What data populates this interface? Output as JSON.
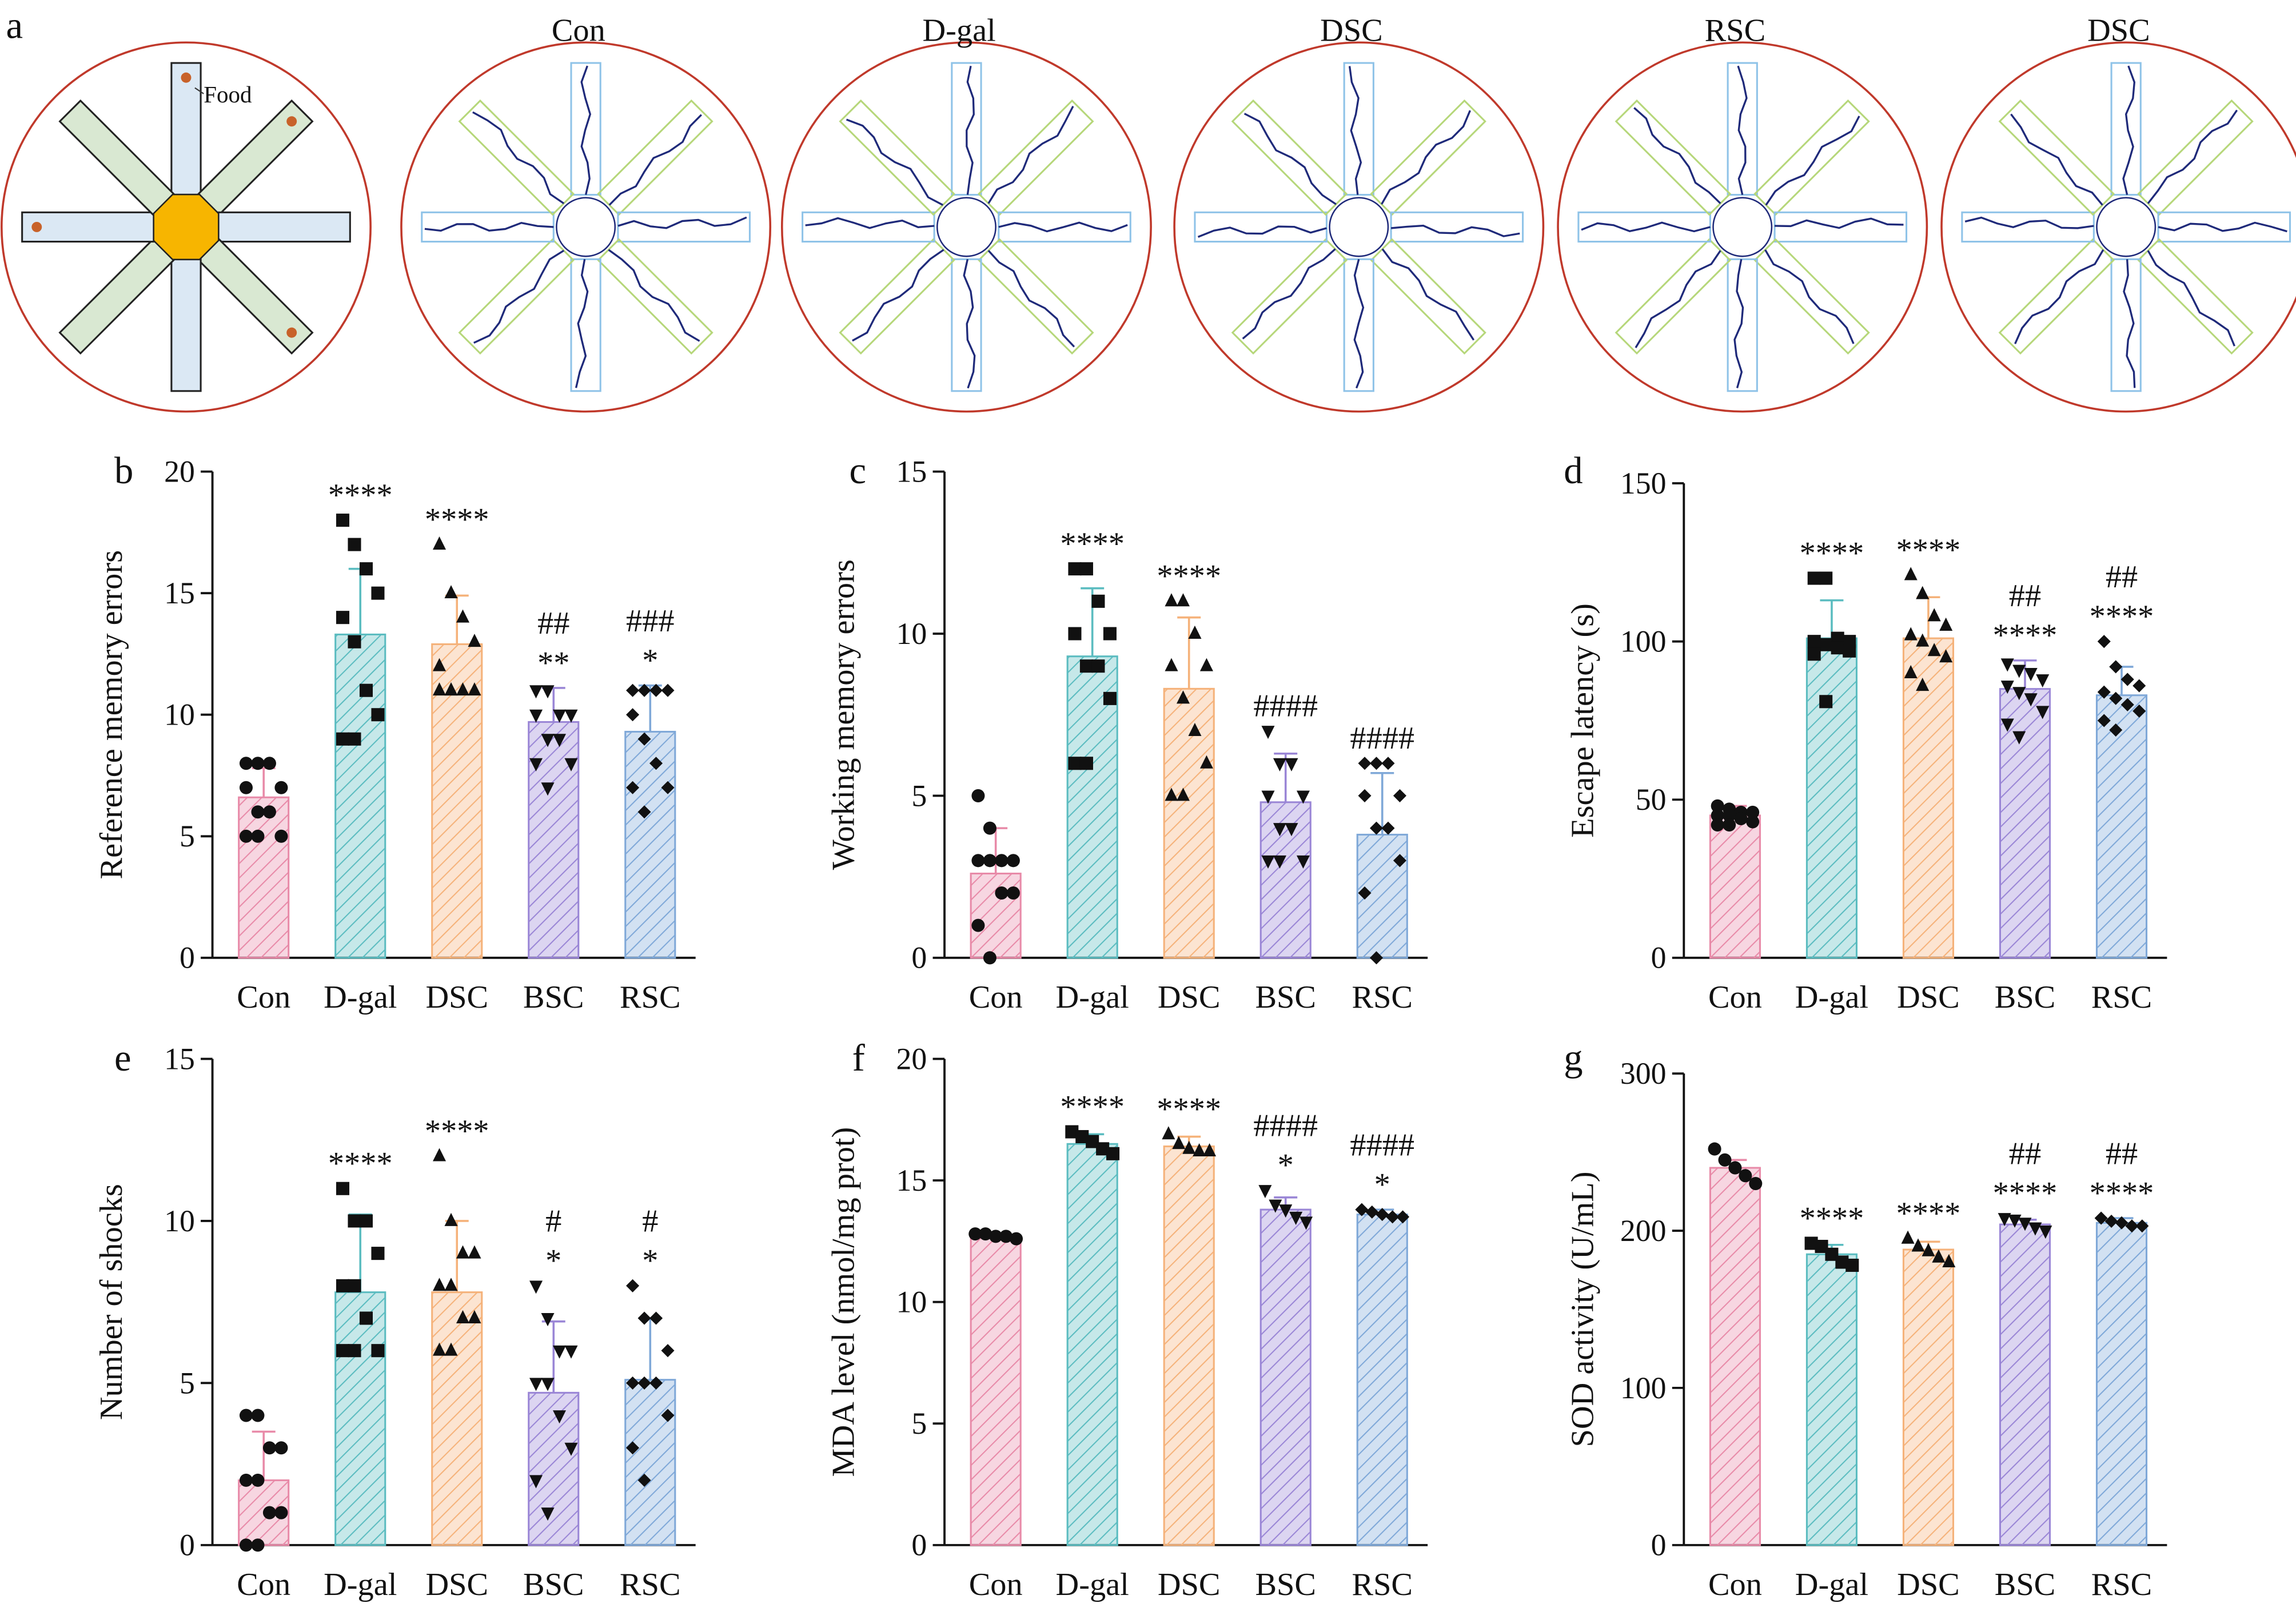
{
  "panel_a": {
    "label": "a",
    "titles": [
      "Con",
      "D-gal",
      "DSC",
      "RSC",
      "DSC"
    ],
    "food": "Food"
  },
  "chart_data": [
    {
      "type": "bar",
      "panel": "b",
      "ylabel": "Reference memory errors",
      "categories": [
        "Con",
        "D-gal",
        "DSC",
        "BSC",
        "RSC"
      ],
      "colors": [
        "#e88aa8",
        "#5bbcc0",
        "#f5b27a",
        "#9a86d6",
        "#7fa8d8"
      ],
      "markers": [
        "circle",
        "square",
        "triangle",
        "triangle-down",
        "diamond"
      ],
      "values": [
        6.6,
        13.3,
        12.9,
        9.7,
        9.3
      ],
      "errors": [
        1.2,
        2.7,
        2.0,
        1.4,
        1.9
      ],
      "points": [
        [
          8,
          8,
          8,
          7,
          7,
          6,
          6,
          5,
          5,
          5
        ],
        [
          18,
          17,
          16,
          15,
          14,
          13,
          11,
          10,
          9,
          9
        ],
        [
          17,
          15,
          14,
          13,
          12,
          11,
          11,
          11,
          11,
          11
        ],
        [
          11,
          11,
          10,
          10,
          10,
          9,
          9,
          8,
          8,
          7
        ],
        [
          11,
          11,
          11,
          11,
          10,
          9,
          8,
          7,
          7,
          6
        ]
      ],
      "annotations": [
        [],
        [
          "****"
        ],
        [
          "****"
        ],
        [
          "##",
          "**"
        ],
        [
          "###",
          "*"
        ]
      ],
      "ylim": [
        0,
        20
      ],
      "yticks": [
        0,
        5,
        10,
        15,
        20
      ]
    },
    {
      "type": "bar",
      "panel": "c",
      "ylabel": "Working memory errors",
      "categories": [
        "Con",
        "D-gal",
        "DSC",
        "BSC",
        "RSC"
      ],
      "colors": [
        "#e88aa8",
        "#5bbcc0",
        "#f5b27a",
        "#9a86d6",
        "#7fa8d8"
      ],
      "markers": [
        "circle",
        "square",
        "triangle",
        "triangle-down",
        "diamond"
      ],
      "values": [
        2.6,
        9.3,
        8.3,
        4.8,
        3.8
      ],
      "errors": [
        1.4,
        2.1,
        2.2,
        1.5,
        1.9
      ],
      "points": [
        [
          5,
          4,
          3,
          3,
          3,
          3,
          2,
          2,
          1,
          0
        ],
        [
          12,
          12,
          11,
          10,
          10,
          9,
          9,
          8,
          6,
          6
        ],
        [
          11,
          11,
          10,
          9,
          9,
          8,
          7,
          6,
          5,
          5
        ],
        [
          7,
          6,
          6,
          5,
          5,
          4,
          4,
          3,
          3,
          3
        ],
        [
          6,
          6,
          6,
          5,
          5,
          4,
          4,
          3,
          2,
          0
        ]
      ],
      "annotations": [
        [],
        [
          "****"
        ],
        [
          "****"
        ],
        [
          "####"
        ],
        [
          "####"
        ]
      ],
      "ylim": [
        0,
        15
      ],
      "yticks": [
        0,
        5,
        10,
        15
      ]
    },
    {
      "type": "bar",
      "panel": "d",
      "ylabel": "Escape latency (s)",
      "categories": [
        "Con",
        "D-gal",
        "DSC",
        "BSC",
        "RSC"
      ],
      "colors": [
        "#e88aa8",
        "#5bbcc0",
        "#f5b27a",
        "#9a86d6",
        "#7fa8d8"
      ],
      "markers": [
        "circle",
        "square",
        "triangle",
        "triangle-down",
        "diamond"
      ],
      "values": [
        45,
        101,
        101,
        85,
        83
      ],
      "errors": [
        3,
        12,
        13,
        9,
        9
      ],
      "points": [
        [
          48,
          47,
          46,
          46,
          45,
          45,
          44,
          43,
          42,
          42
        ],
        [
          120,
          120,
          101,
          100,
          100,
          99,
          98,
          97,
          96,
          81
        ],
        [
          121,
          115,
          108,
          105,
          102,
          100,
          97,
          95,
          90,
          86
        ],
        [
          93,
          91,
          90,
          88,
          86,
          84,
          82,
          78,
          74,
          70
        ],
        [
          100,
          92,
          88,
          86,
          84,
          82,
          80,
          78,
          75,
          72
        ]
      ],
      "annotations": [
        [],
        [
          "****"
        ],
        [
          "****"
        ],
        [
          "##",
          "****"
        ],
        [
          "##",
          "****"
        ]
      ],
      "ylim": [
        0,
        150
      ],
      "yticks": [
        0,
        50,
        100,
        150
      ]
    },
    {
      "type": "bar",
      "panel": "e",
      "ylabel": "Number of shocks",
      "categories": [
        "Con",
        "D-gal",
        "DSC",
        "BSC",
        "RSC"
      ],
      "colors": [
        "#e88aa8",
        "#5bbcc0",
        "#f5b27a",
        "#9a86d6",
        "#7fa8d8"
      ],
      "markers": [
        "circle",
        "square",
        "triangle",
        "triangle-down",
        "diamond"
      ],
      "values": [
        2.0,
        7.8,
        7.8,
        4.7,
        5.1
      ],
      "errors": [
        1.5,
        2.4,
        2.2,
        2.2,
        1.9
      ],
      "points": [
        [
          4,
          4,
          3,
          3,
          2,
          2,
          1,
          1,
          0,
          0
        ],
        [
          11,
          10,
          10,
          9,
          8,
          8,
          7,
          6,
          6,
          6
        ],
        [
          12,
          10,
          9,
          9,
          8,
          8,
          7,
          7,
          6,
          6
        ],
        [
          8,
          7,
          6,
          6,
          5,
          5,
          4,
          3,
          2,
          1
        ],
        [
          8,
          7,
          7,
          6,
          5,
          5,
          5,
          4,
          3,
          2
        ]
      ],
      "annotations": [
        [],
        [
          "****"
        ],
        [
          "****"
        ],
        [
          "#",
          "*"
        ],
        [
          "#",
          "*"
        ]
      ],
      "ylim": [
        0,
        15
      ],
      "yticks": [
        0,
        5,
        10,
        15
      ]
    },
    {
      "type": "bar",
      "panel": "f",
      "ylabel": "MDA level (nmol/mg prot)",
      "categories": [
        "Con",
        "D-gal",
        "DSC",
        "BSC",
        "RSC"
      ],
      "colors": [
        "#e88aa8",
        "#5bbcc0",
        "#f5b27a",
        "#9a86d6",
        "#7fa8d8"
      ],
      "markers": [
        "circle",
        "square",
        "triangle",
        "triangle-down",
        "diamond"
      ],
      "values": [
        12.7,
        16.5,
        16.4,
        13.8,
        13.6
      ],
      "errors": [
        0.1,
        0.4,
        0.4,
        0.5,
        0.2
      ],
      "points": [
        [
          12.8,
          12.8,
          12.7,
          12.7,
          12.6
        ],
        [
          17.0,
          16.8,
          16.6,
          16.3,
          16.1
        ],
        [
          16.9,
          16.5,
          16.3,
          16.2,
          16.2
        ],
        [
          14.6,
          14.0,
          13.8,
          13.5,
          13.3
        ],
        [
          13.8,
          13.7,
          13.6,
          13.5,
          13.5
        ]
      ],
      "annotations": [
        [],
        [
          "****"
        ],
        [
          "****"
        ],
        [
          "####",
          "*"
        ],
        [
          "####",
          "*"
        ]
      ],
      "ylim": [
        0,
        20
      ],
      "yticks": [
        0,
        5,
        10,
        15,
        20
      ]
    },
    {
      "type": "bar",
      "panel": "g",
      "ylabel": "SOD activity (U/mL)",
      "categories": [
        "Con",
        "D-gal",
        "DSC",
        "BSC",
        "RSC"
      ],
      "colors": [
        "#e88aa8",
        "#5bbcc0",
        "#f5b27a",
        "#9a86d6",
        "#7fa8d8"
      ],
      "markers": [
        "circle",
        "square",
        "triangle",
        "triangle-down",
        "diamond"
      ],
      "values": [
        240,
        185,
        188,
        204,
        205
      ],
      "errors": [
        5,
        6,
        5,
        3,
        3
      ],
      "points": [
        [
          252,
          245,
          240,
          235,
          230
        ],
        [
          192,
          190,
          185,
          180,
          178
        ],
        [
          195,
          190,
          187,
          183,
          180
        ],
        [
          208,
          207,
          205,
          202,
          200
        ],
        [
          208,
          206,
          205,
          203,
          203
        ]
      ],
      "annotations": [
        [],
        [
          "****"
        ],
        [
          "****"
        ],
        [
          "##",
          "****"
        ],
        [
          "##",
          "****"
        ]
      ],
      "ylim": [
        0,
        300
      ],
      "yticks": [
        0,
        100,
        200,
        300
      ]
    }
  ]
}
